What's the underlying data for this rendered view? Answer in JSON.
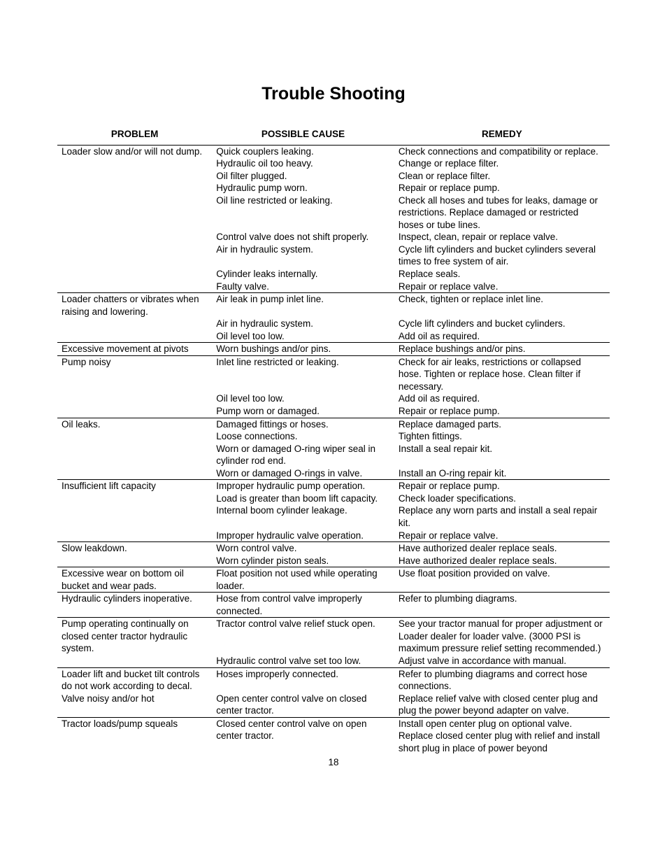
{
  "title": "Trouble Shooting",
  "columns": {
    "problem": "PROBLEM",
    "cause": "POSSIBLE CAUSE",
    "remedy": "REMEDY"
  },
  "page_number": "18",
  "rows": [
    {
      "section_start": false,
      "first_body": true,
      "problem": "Loader slow and/or will not dump.",
      "cause": "Quick couplers leaking.",
      "remedy": "Check connections and compatibility or replace."
    },
    {
      "cause": "Hydraulic oil too heavy.",
      "remedy": "Change or replace filter."
    },
    {
      "cause": "Oil filter plugged.",
      "remedy": "Clean or replace filter."
    },
    {
      "cause": "Hydraulic pump worn.",
      "remedy": "Repair or replace pump."
    },
    {
      "cause": "Oil line restricted or leaking.",
      "remedy": "Check all hoses and tubes for leaks, damage or restrictions. Replace damaged or restricted hoses or tube lines."
    },
    {
      "cause": "Control valve does not shift properly.",
      "remedy": "Inspect, clean, repair or replace valve."
    },
    {
      "cause": "Air in hydraulic system.",
      "remedy": "Cycle lift cylinders and bucket cylinders several times to free system of air."
    },
    {
      "cause": "Cylinder leaks internally.",
      "remedy": "Replace seals."
    },
    {
      "cause": "Faulty valve.",
      "remedy": "Repair or replace valve."
    },
    {
      "section_start": true,
      "problem": "Loader chatters or vibrates when raising and lowering.",
      "cause": "Air leak in pump inlet line.",
      "remedy": "Check, tighten or replace inlet line."
    },
    {
      "cause": "Air in hydraulic system.",
      "remedy": "Cycle lift cylinders and bucket cylinders."
    },
    {
      "cause": "Oil level too low.",
      "remedy": "Add oil as required."
    },
    {
      "section_start": true,
      "problem": "Excessive movement at pivots",
      "cause": "Worn bushings and/or pins.",
      "remedy": "Replace bushings and/or pins."
    },
    {
      "section_start": true,
      "problem": "Pump noisy",
      "cause": "Inlet line restricted or leaking.",
      "remedy": "Check for air leaks, restrictions or collapsed hose. Tighten or replace hose. Clean filter if necessary."
    },
    {
      "cause": "Oil level too low.",
      "remedy": "Add oil as required."
    },
    {
      "cause": "Pump worn or damaged.",
      "remedy": "Repair or replace pump."
    },
    {
      "section_start": true,
      "problem": "Oil leaks.",
      "cause": "Damaged fittings or hoses.",
      "remedy": "Replace damaged parts."
    },
    {
      "cause": "Loose connections.",
      "remedy": "Tighten fittings."
    },
    {
      "cause": "Worn or damaged O-ring wiper seal in cylinder rod end.",
      "remedy": "Install a seal repair kit."
    },
    {
      "cause": "Worn or damaged O-rings in valve.",
      "remedy": "Install an O-ring repair kit."
    },
    {
      "section_start": true,
      "problem": "Insufficient lift capacity",
      "cause": "Improper hydraulic pump operation.",
      "remedy": "Repair or replace pump."
    },
    {
      "cause": "Load is greater than boom lift capacity.",
      "remedy": "Check loader specifications."
    },
    {
      "cause": "Internal boom cylinder leakage.",
      "remedy": "Replace any worn parts and install a seal repair kit."
    },
    {
      "cause": "Improper hydraulic valve operation.",
      "remedy": "Repair or replace valve."
    },
    {
      "section_start": true,
      "problem": "Slow leakdown.",
      "cause": "Worn control valve.",
      "remedy": "Have authorized dealer replace seals."
    },
    {
      "cause": "Worn cylinder piston seals.",
      "remedy": "Have authorized dealer replace seals."
    },
    {
      "section_start": true,
      "problem": "Excessive wear on bottom oil bucket and wear pads.",
      "cause": "Float position not used while operating loader.",
      "remedy": "Use float position provided on valve."
    },
    {
      "section_start": true,
      "problem": "Hydraulic cylinders inoperative.",
      "cause": "Hose from control valve improperly connected.",
      "remedy": "Refer to plumbing diagrams."
    },
    {
      "section_start": true,
      "problem": "Pump operating continually on closed center tractor hydraulic system.",
      "cause": "Tractor control valve relief stuck open.",
      "remedy": "See your tractor manual for proper adjustment or Loader dealer for loader valve. (3000 PSI is maximum pressure relief setting recommended.)"
    },
    {
      "cause": "Hydraulic control valve set too low.",
      "remedy": "Adjust valve in accordance with manual."
    },
    {
      "section_start": true,
      "problem": "Loader lift and bucket tilt controls do not work according to decal.",
      "cause": "Hoses improperly connected.",
      "remedy": "Refer to plumbing diagrams and correct hose connections."
    },
    {
      "problem": "Valve noisy and/or hot",
      "cause": "Open center control valve on closed center tractor.",
      "remedy": "Replace relief valve with closed center plug and plug the power beyond adapter on valve."
    },
    {
      "section_start": true,
      "problem": "Tractor loads/pump squeals",
      "cause": "Closed center control valve on open center tractor.",
      "remedy": "Install open center plug on optional valve. Replace closed center plug with relief and install short plug in place of power beyond"
    }
  ]
}
